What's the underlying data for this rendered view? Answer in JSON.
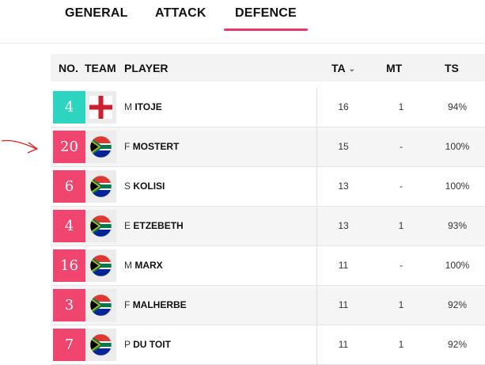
{
  "tabs": [
    {
      "label": "GENERAL",
      "active": false
    },
    {
      "label": "ATTACK",
      "active": false
    },
    {
      "label": "DEFENCE",
      "active": true
    }
  ],
  "header": {
    "no": "NO.",
    "team": "TEAM",
    "player": "PLAYER",
    "ta": "TA",
    "mt": "MT",
    "ts": "TS"
  },
  "colors": {
    "accent": "#e6386a",
    "england_number": "#2dd4c0",
    "south_africa_number": "#f0456e"
  },
  "rows": [
    {
      "number": "4",
      "team_icon": "england-flag-icon",
      "initial": "M",
      "surname": "ITOJE",
      "ta": "16",
      "mt": "1",
      "ts": "94%"
    },
    {
      "number": "20",
      "team_icon": "south-africa-flag-icon",
      "initial": "F",
      "surname": "MOSTERT",
      "ta": "15",
      "mt": "-",
      "ts": "100%"
    },
    {
      "number": "6",
      "team_icon": "south-africa-flag-icon",
      "initial": "S",
      "surname": "KOLISI",
      "ta": "13",
      "mt": "-",
      "ts": "100%"
    },
    {
      "number": "4",
      "team_icon": "south-africa-flag-icon",
      "initial": "E",
      "surname": "ETZEBETH",
      "ta": "13",
      "mt": "1",
      "ts": "93%"
    },
    {
      "number": "16",
      "team_icon": "south-africa-flag-icon",
      "initial": "M",
      "surname": "MARX",
      "ta": "11",
      "mt": "-",
      "ts": "100%"
    },
    {
      "number": "3",
      "team_icon": "south-africa-flag-icon",
      "initial": "F",
      "surname": "MALHERBE",
      "ta": "11",
      "mt": "1",
      "ts": "92%"
    },
    {
      "number": "7",
      "team_icon": "south-africa-flag-icon",
      "initial": "P",
      "surname": "DU TOIT",
      "ta": "11",
      "mt": "1",
      "ts": "92%"
    }
  ]
}
